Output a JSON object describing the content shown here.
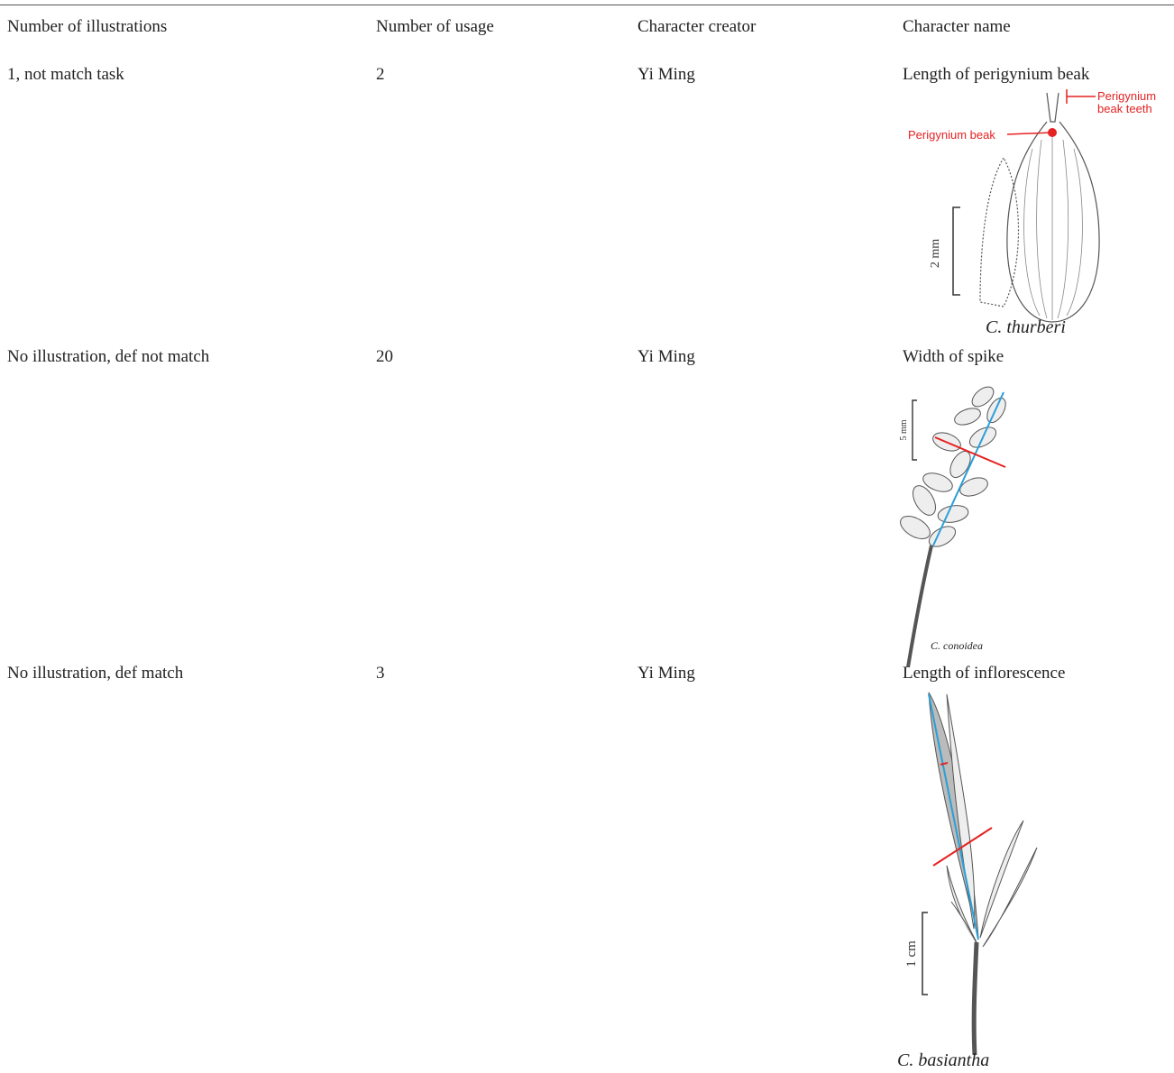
{
  "table": {
    "headers": [
      "Number of illustrations",
      "Number of usage",
      "Character creator",
      "Character name"
    ],
    "rows": [
      [
        "1, not match task",
        "2",
        "Yi Ming",
        "Length of perigynium beak"
      ],
      [
        "No illustration, def not match",
        "20",
        "Yi Ming",
        "Width of spike"
      ],
      [
        "No illustration, def match",
        "3",
        "Yi Ming",
        "Length of inflorescence"
      ]
    ]
  },
  "illustrations": [
    {
      "labels": [
        "Perigynium beak",
        [
          "Perigynium",
          "beak teeth"
        ]
      ],
      "scale": "2 mm",
      "species": "C. thurberi"
    },
    {
      "scale": "5 mm",
      "species": "C. conoidea"
    },
    {
      "scale": "1 cm",
      "species": "C. basiantha"
    }
  ]
}
